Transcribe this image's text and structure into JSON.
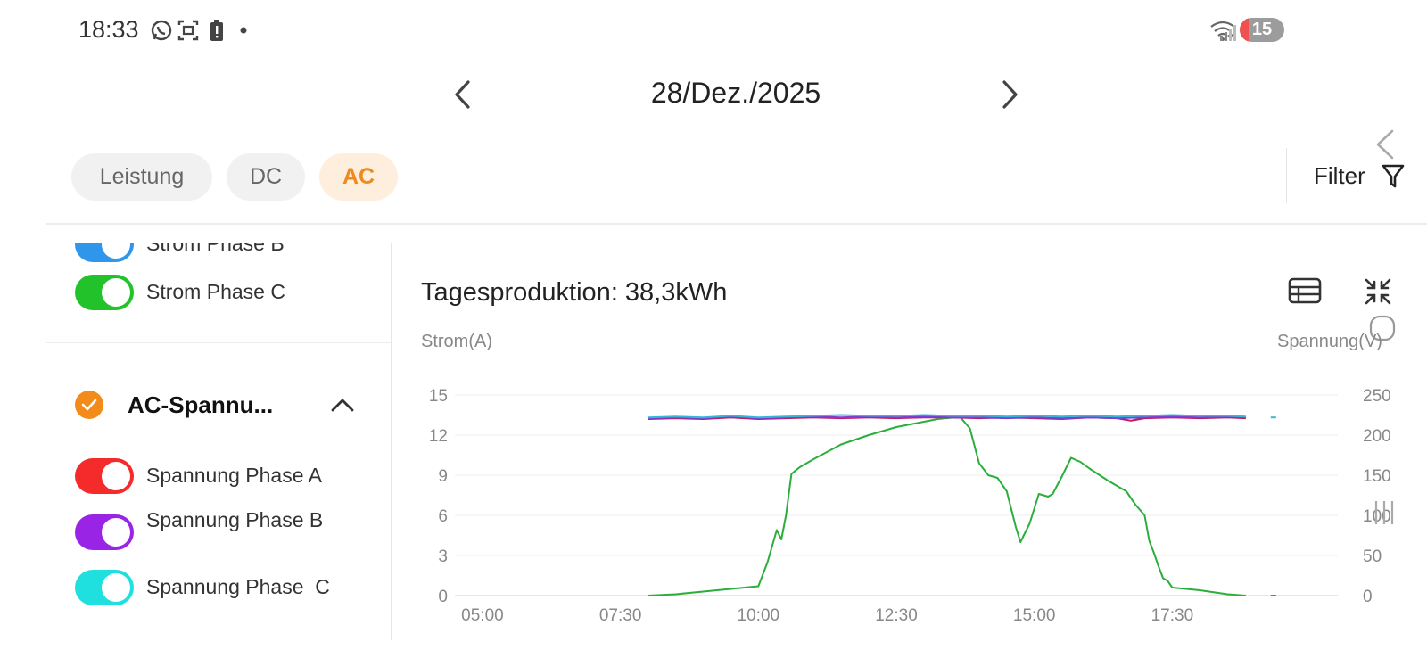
{
  "status_bar": {
    "time": "18:33",
    "battery_level": "15"
  },
  "date_nav": {
    "date": "28/Dez./2025"
  },
  "tabs": [
    {
      "label": "Leistung",
      "active": false
    },
    {
      "label": "DC",
      "active": false
    },
    {
      "label": "AC",
      "active": true
    }
  ],
  "filter": {
    "label": "Filter"
  },
  "series_toggles": {
    "strom": [
      {
        "label": "Strom Phase B",
        "color": "#2f96ec",
        "on": true
      },
      {
        "label": "Strom Phase C",
        "color": "#22c22b",
        "on": true
      }
    ],
    "group": {
      "title": "AC-Spannu...",
      "expanded": true
    },
    "spannung": [
      {
        "label": "Spannung Phase A",
        "color": "#f52b2b",
        "on": true
      },
      {
        "label": "Spannung Phase B",
        "color": "#9a24e5",
        "on": true
      },
      {
        "label": "Spannung Phase  C",
        "color": "#1fe0de",
        "on": true
      }
    ]
  },
  "chart_data": {
    "type": "line",
    "title": "Tagesproduktion: 38,3kWh",
    "ylabel_left": "Strom(A)",
    "ylabel_right": "Spannung(V)",
    "x_ticks": [
      "05:00",
      "07:30",
      "10:00",
      "12:30",
      "15:00",
      "17:30"
    ],
    "y_left_ticks": [
      "0",
      "3",
      "6",
      "9",
      "12",
      "15"
    ],
    "y_right_ticks": [
      "0",
      "50",
      "100",
      "150",
      "200",
      "250"
    ],
    "ylim_left": [
      0,
      15
    ],
    "ylim_right": [
      0,
      250
    ],
    "grid": true,
    "series": [
      {
        "name": "Strom Phase C",
        "axis": "left",
        "color": "#2bae3c",
        "points": [
          [
            "08:00",
            0
          ],
          [
            "08:30",
            0.1
          ],
          [
            "09:00",
            0.3
          ],
          [
            "09:30",
            0.5
          ],
          [
            "10:00",
            0.7
          ],
          [
            "10:10",
            2.5
          ],
          [
            "10:20",
            4.9
          ],
          [
            "10:25",
            4.2
          ],
          [
            "10:30",
            6.0
          ],
          [
            "10:36",
            9.1
          ],
          [
            "10:45",
            9.6
          ],
          [
            "11:00",
            10.2
          ],
          [
            "11:30",
            11.3
          ],
          [
            "12:00",
            12.0
          ],
          [
            "12:30",
            12.6
          ],
          [
            "13:00",
            13.0
          ],
          [
            "13:15",
            13.2
          ],
          [
            "13:30",
            13.3
          ],
          [
            "13:40",
            13.3
          ],
          [
            "13:50",
            12.5
          ],
          [
            "14:00",
            9.9
          ],
          [
            "14:10",
            9.0
          ],
          [
            "14:20",
            8.8
          ],
          [
            "14:30",
            7.8
          ],
          [
            "14:40",
            5.1
          ],
          [
            "14:45",
            4.0
          ],
          [
            "14:55",
            5.4
          ],
          [
            "15:05",
            7.6
          ],
          [
            "15:15",
            7.4
          ],
          [
            "15:20",
            7.6
          ],
          [
            "15:30",
            8.9
          ],
          [
            "15:40",
            10.3
          ],
          [
            "15:50",
            10.0
          ],
          [
            "16:00",
            9.5
          ],
          [
            "16:20",
            8.6
          ],
          [
            "16:40",
            7.8
          ],
          [
            "16:50",
            6.8
          ],
          [
            "17:00",
            6.0
          ],
          [
            "17:05",
            4.1
          ],
          [
            "17:10",
            3.2
          ],
          [
            "17:15",
            2.2
          ],
          [
            "17:20",
            1.3
          ],
          [
            "17:25",
            1.1
          ],
          [
            "17:30",
            0.6
          ],
          [
            "18:00",
            0.4
          ],
          [
            "18:30",
            0.1
          ],
          [
            "18:50",
            0
          ]
        ]
      },
      {
        "name": "Spannung Phase A",
        "axis": "right",
        "color": "#c2185b",
        "points": [
          [
            "08:00",
            220
          ],
          [
            "08:30",
            221
          ],
          [
            "09:00",
            220
          ],
          [
            "09:30",
            222
          ],
          [
            "10:00",
            220
          ],
          [
            "10:30",
            221
          ],
          [
            "11:00",
            222
          ],
          [
            "11:30",
            221
          ],
          [
            "12:00",
            222
          ],
          [
            "12:30",
            221
          ],
          [
            "13:00",
            222
          ],
          [
            "13:30",
            222
          ],
          [
            "14:00",
            221
          ],
          [
            "14:30",
            222
          ],
          [
            "15:00",
            221
          ],
          [
            "15:30",
            220
          ],
          [
            "16:00",
            222
          ],
          [
            "16:30",
            221
          ],
          [
            "16:45",
            218
          ],
          [
            "17:00",
            221
          ],
          [
            "17:30",
            222
          ],
          [
            "18:00",
            221
          ],
          [
            "18:30",
            222
          ],
          [
            "18:50",
            221
          ]
        ]
      },
      {
        "name": "Spannung Phase B",
        "axis": "right",
        "color": "#7a3fd6",
        "points": [
          [
            "08:00",
            221
          ],
          [
            "08:30",
            222
          ],
          [
            "09:00",
            221
          ],
          [
            "09:30",
            223
          ],
          [
            "10:00",
            221
          ],
          [
            "10:30",
            222
          ],
          [
            "11:00",
            223
          ],
          [
            "11:30",
            222
          ],
          [
            "12:00",
            223
          ],
          [
            "12:30",
            222
          ],
          [
            "13:00",
            223
          ],
          [
            "13:30",
            222
          ],
          [
            "14:00",
            222
          ],
          [
            "14:30",
            221
          ],
          [
            "15:00",
            222
          ],
          [
            "15:30",
            221
          ],
          [
            "16:00",
            222
          ],
          [
            "16:30",
            221
          ],
          [
            "17:00",
            222
          ],
          [
            "17:30",
            223
          ],
          [
            "18:00",
            222
          ],
          [
            "18:30",
            223
          ],
          [
            "18:50",
            222
          ]
        ]
      },
      {
        "name": "Spannung Phase C",
        "axis": "right",
        "color": "#38b6d8",
        "points": [
          [
            "08:00",
            222
          ],
          [
            "08:30",
            223
          ],
          [
            "09:00",
            222
          ],
          [
            "09:30",
            224
          ],
          [
            "10:00",
            222
          ],
          [
            "10:30",
            223
          ],
          [
            "11:00",
            224
          ],
          [
            "11:30",
            225
          ],
          [
            "12:00",
            224
          ],
          [
            "12:30",
            224
          ],
          [
            "13:00",
            225
          ],
          [
            "13:30",
            224
          ],
          [
            "14:00",
            224
          ],
          [
            "14:30",
            223
          ],
          [
            "15:00",
            224
          ],
          [
            "15:30",
            223
          ],
          [
            "16:00",
            224
          ],
          [
            "16:30",
            223
          ],
          [
            "17:00",
            224
          ],
          [
            "17:30",
            225
          ],
          [
            "18:00",
            224
          ],
          [
            "18:30",
            224
          ],
          [
            "18:50",
            223
          ]
        ]
      }
    ],
    "trailing_marks": [
      {
        "axis": "right",
        "time": "19:20",
        "value": 222,
        "color": "#38b6d8"
      },
      {
        "axis": "left",
        "time": "19:20",
        "value": 0,
        "color": "#2bae3c"
      }
    ]
  }
}
